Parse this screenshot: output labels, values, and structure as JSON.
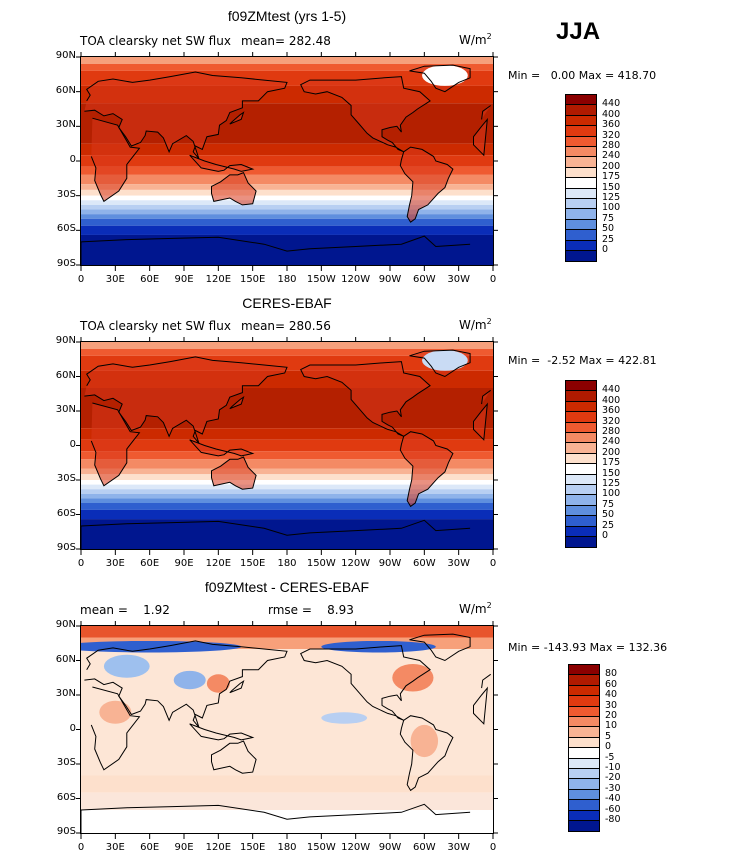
{
  "season": "JJA",
  "units_base": "W/m",
  "units_exp": "2",
  "panels": [
    {
      "id": "p1",
      "title": "f09ZMtest (yrs 1-5)",
      "subtitle_left": "TOA clearsky net SW flux",
      "subtitle_mid": "mean= 282.48",
      "minmax": "Min =   0.00 Max = 418.70",
      "cbar_labels": [
        "440",
        "400",
        "360",
        "320",
        "280",
        "240",
        "200",
        "175",
        "150",
        "125",
        "100",
        "75",
        "50",
        "25",
        "0"
      ],
      "cbar_colors": [
        "#8b0000",
        "#b01a00",
        "#cc2a00",
        "#e03a10",
        "#ef5a30",
        "#f48a64",
        "#f8b394",
        "#fde0cc",
        "#ffffff",
        "#dce8f8",
        "#b8cff2",
        "#8fb3ea",
        "#5f8fde",
        "#2f5fcf",
        "#0a2db8",
        "#00168f"
      ]
    },
    {
      "id": "p2",
      "title": "CERES-EBAF",
      "subtitle_left": "TOA clearsky net SW flux",
      "subtitle_mid": "mean= 280.56",
      "minmax": "Min =  -2.52 Max = 422.81",
      "cbar_labels": [
        "440",
        "400",
        "360",
        "320",
        "280",
        "240",
        "200",
        "175",
        "150",
        "125",
        "100",
        "75",
        "50",
        "25",
        "0"
      ],
      "cbar_colors": [
        "#8b0000",
        "#b01a00",
        "#cc2a00",
        "#e03a10",
        "#ef5a30",
        "#f48a64",
        "#f8b394",
        "#fde0cc",
        "#ffffff",
        "#dce8f8",
        "#b8cff2",
        "#8fb3ea",
        "#5f8fde",
        "#2f5fcf",
        "#0a2db8",
        "#00168f"
      ]
    },
    {
      "id": "p3",
      "title": "f09ZMtest - CERES-EBAF",
      "subtitle_left": "mean =    1.92",
      "subtitle_mid": "rmse =    8.93",
      "minmax": "Min = -143.93 Max = 132.36",
      "cbar_labels": [
        "80",
        "60",
        "40",
        "30",
        "20",
        "10",
        "5",
        "0",
        "-5",
        "-10",
        "-20",
        "-30",
        "-40",
        "-60",
        "-80"
      ],
      "cbar_colors": [
        "#8b0000",
        "#b01a00",
        "#cc2a00",
        "#e03a10",
        "#ef5a30",
        "#f48a64",
        "#f8b394",
        "#fde0cc",
        "#ffffff",
        "#dce8f8",
        "#b8cff2",
        "#8fb3ea",
        "#5f8fde",
        "#2f5fcf",
        "#0a2db8",
        "#00168f"
      ]
    }
  ],
  "lat_labels": [
    "90N",
    "60N",
    "30N",
    "0",
    "30S",
    "60S",
    "90S"
  ],
  "lon_labels": [
    "0",
    "30E",
    "60E",
    "90E",
    "120E",
    "150E",
    "180",
    "150W",
    "120W",
    "90W",
    "60W",
    "30W",
    "0"
  ]
}
